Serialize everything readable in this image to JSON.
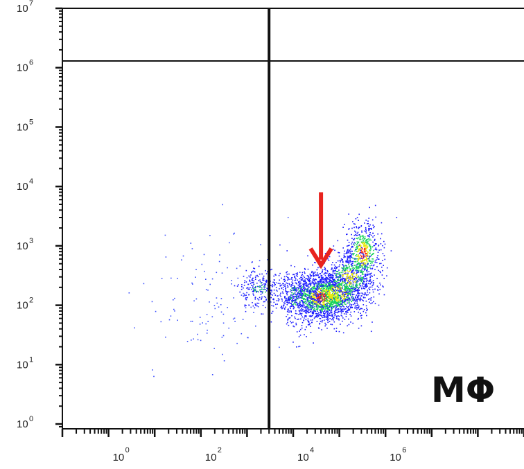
{
  "chart_data": {
    "type": "scatter",
    "title": "",
    "xlabel": "",
    "ylabel": "",
    "x_scale": "log",
    "y_scale": "log",
    "xlim": [
      0.1,
      1000000000
    ],
    "ylim": [
      0.83,
      10000000
    ],
    "x_ticks": [
      {
        "value": 1,
        "base": "10",
        "exp": "0"
      },
      {
        "value": 100,
        "base": "10",
        "exp": "2"
      },
      {
        "value": 10000,
        "base": "10",
        "exp": "4"
      },
      {
        "value": 1000000,
        "base": "10",
        "exp": "6"
      }
    ],
    "y_ticks": [
      {
        "value": 1,
        "base": "10",
        "exp": "0"
      },
      {
        "value": 10,
        "base": "10",
        "exp": "1"
      },
      {
        "value": 100,
        "base": "10",
        "exp": "2"
      },
      {
        "value": 1000,
        "base": "10",
        "exp": "3"
      },
      {
        "value": 10000,
        "base": "10",
        "exp": "4"
      },
      {
        "value": 100000,
        "base": "10",
        "exp": "5"
      },
      {
        "value": 1000000,
        "base": "10",
        "exp": "6"
      },
      {
        "value": 10000000,
        "base": "10",
        "exp": "7"
      }
    ],
    "gates": {
      "vertical_x": 3000,
      "horizontal_y": 1300000
    },
    "population_label": "MΦ",
    "annotation_arrow": {
      "x": 40000,
      "y_from": 8000,
      "y_to": 500,
      "color": "#e8231e"
    },
    "clusters": [
      {
        "x": 40000,
        "y": 140,
        "sx": 0.35,
        "sy": 0.2,
        "n": 1400,
        "density": "high"
      },
      {
        "x": 90000,
        "y": 160,
        "sx": 0.35,
        "sy": 0.22,
        "n": 700,
        "density": "medium"
      },
      {
        "x": 320000,
        "y": 750,
        "sx": 0.2,
        "sy": 0.28,
        "n": 550,
        "density": "high"
      },
      {
        "x": 160000,
        "y": 300,
        "sx": 0.3,
        "sy": 0.22,
        "n": 450,
        "density": "medium"
      },
      {
        "x": 12000,
        "y": 150,
        "sx": 0.25,
        "sy": 0.25,
        "n": 350,
        "density": "low"
      },
      {
        "x": 1800,
        "y": 200,
        "sx": 0.22,
        "sy": 0.15,
        "n": 220,
        "density": "low"
      },
      {
        "x": 150,
        "y": 120,
        "sx": 0.7,
        "sy": 0.55,
        "n": 120,
        "density": "sparse"
      }
    ],
    "colors": {
      "low": "#1a1aff",
      "medium": "#19d35c",
      "high": "#e6e600",
      "peak": "#ff2a00",
      "sparse": "#3b50ff"
    },
    "grid": false,
    "legend": "none"
  }
}
